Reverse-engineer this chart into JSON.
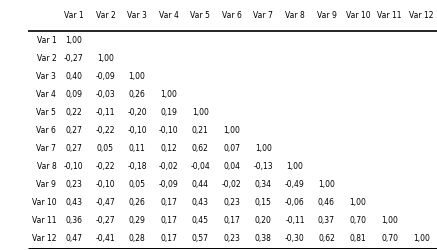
{
  "col_headers": [
    "Var 1",
    "Var 2",
    "Var 3",
    "Var 4",
    "Var 5",
    "Var 6",
    "Var 7",
    "Var 8",
    "Var 9",
    "Var 10",
    "Var 11",
    "Var 12"
  ],
  "row_headers": [
    "Var 1",
    "Var 2",
    "Var 3",
    "Var 4",
    "Var 5",
    "Var 6",
    "Var 7",
    "Var 8",
    "Var 9",
    "Var 10",
    "Var 11",
    "Var 12"
  ],
  "data": [
    [
      "1,00",
      "",
      "",
      "",
      "",
      "",
      "",
      "",
      "",
      "",
      "",
      ""
    ],
    [
      "-0,27",
      "1,00",
      "",
      "",
      "",
      "",
      "",
      "",
      "",
      "",
      "",
      ""
    ],
    [
      "0,40",
      "-0,09",
      "1,00",
      "",
      "",
      "",
      "",
      "",
      "",
      "",
      "",
      ""
    ],
    [
      "0,09",
      "-0,03",
      "0,26",
      "1,00",
      "",
      "",
      "",
      "",
      "",
      "",
      "",
      ""
    ],
    [
      "0,22",
      "-0,11",
      "-0,20",
      "0,19",
      "1,00",
      "",
      "",
      "",
      "",
      "",
      "",
      ""
    ],
    [
      "0,27",
      "-0,22",
      "-0,10",
      "-0,10",
      "0,21",
      "1,00",
      "",
      "",
      "",
      "",
      "",
      ""
    ],
    [
      "0,27",
      "0,05",
      "0,11",
      "0,12",
      "0,62",
      "0,07",
      "1,00",
      "",
      "",
      "",
      "",
      ""
    ],
    [
      "-0,10",
      "-0,22",
      "-0,18",
      "-0,02",
      "-0,04",
      "0,04",
      "-0,13",
      "1,00",
      "",
      "",
      "",
      ""
    ],
    [
      "0,23",
      "-0,10",
      "0,05",
      "-0,09",
      "0,44",
      "-0,02",
      "0,34",
      "-0,49",
      "1,00",
      "",
      "",
      ""
    ],
    [
      "0,43",
      "-0,47",
      "0,26",
      "0,17",
      "0,43",
      "0,23",
      "0,15",
      "-0,06",
      "0,46",
      "1,00",
      "",
      ""
    ],
    [
      "0,36",
      "-0,27",
      "0,29",
      "0,17",
      "0,45",
      "0,17",
      "0,20",
      "-0,11",
      "0,37",
      "0,70",
      "1,00",
      ""
    ],
    [
      "0,47",
      "-0,41",
      "0,28",
      "0,17",
      "0,57",
      "0,23",
      "0,38",
      "-0,30",
      "0,62",
      "0,81",
      "0,70",
      "1,00"
    ]
  ],
  "font_size": 5.5,
  "bg_color": "#ffffff",
  "text_color": "#000000"
}
